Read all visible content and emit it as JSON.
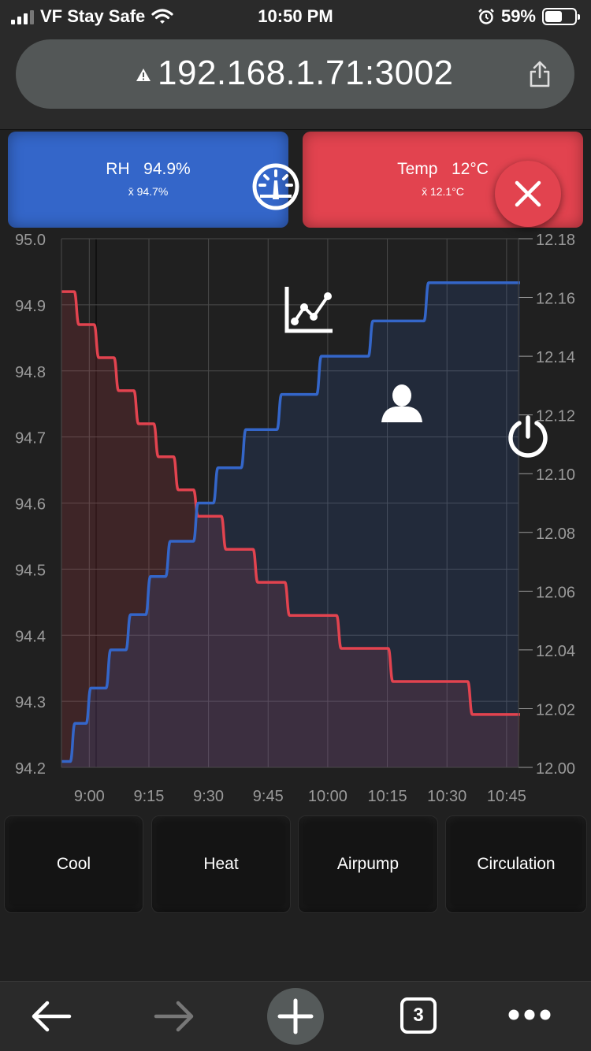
{
  "status_bar": {
    "carrier": "VF Stay Safe",
    "time": "10:50 PM",
    "battery": "59%",
    "battery_level": 0.59,
    "icons": [
      "signal-icon",
      "wifi-icon",
      "alarm-icon",
      "battery-icon"
    ]
  },
  "browser": {
    "url": "192.168.1.71:3002",
    "tab_count": "3",
    "icons": [
      "warning-icon",
      "share-icon",
      "back-icon",
      "forward-icon",
      "new-tab-icon",
      "tabs-icon",
      "more-icon"
    ]
  },
  "cards": {
    "rh": {
      "label": "RH",
      "value": "94.9%",
      "mean": "x̄ 94.7%"
    },
    "temp": {
      "label": "Temp",
      "value": "12°C",
      "mean": "x̄ 12.1°C"
    }
  },
  "colors": {
    "rh": "#3466c9",
    "temp": "#e2434f",
    "background": "#202020"
  },
  "chart_data": {
    "type": "line",
    "x": [
      "8:53",
      "8:55",
      "9:00",
      "9:05",
      "9:10",
      "9:15",
      "9:20",
      "9:25",
      "9:30",
      "9:35",
      "9:40",
      "9:45",
      "9:55",
      "10:05",
      "10:15",
      "10:25",
      "10:35",
      "10:45"
    ],
    "x_tick_labels": [
      "9:00",
      "9:15",
      "9:30",
      "9:45",
      "10:00",
      "10:15",
      "10:30",
      "10:45"
    ],
    "y_left": {
      "range": [
        94.2,
        95.0
      ],
      "ticks": [
        "95.0",
        "94.9",
        "94.8",
        "94.7",
        "94.6",
        "94.5",
        "94.4",
        "94.3",
        "94.2"
      ]
    },
    "y_right": {
      "range": [
        12.0,
        12.18
      ],
      "ticks": [
        "12.18",
        "12.16",
        "12.14",
        "12.12",
        "12.10",
        "12.08",
        "12.06",
        "12.04",
        "12.02",
        "12.00"
      ]
    },
    "series": [
      {
        "axis": "left",
        "color": "#e2434f",
        "steps": [
          [
            "8:53",
            94.92
          ],
          [
            "8:57",
            94.87
          ],
          [
            "9:02",
            94.82
          ],
          [
            "9:07",
            94.77
          ],
          [
            "9:12",
            94.72
          ],
          [
            "9:17",
            94.67
          ],
          [
            "9:22",
            94.62
          ],
          [
            "9:27",
            94.58
          ],
          [
            "9:34",
            94.53
          ],
          [
            "9:42",
            94.48
          ],
          [
            "9:50",
            94.43
          ],
          [
            "10:03",
            94.38
          ],
          [
            "10:16",
            94.33
          ],
          [
            "10:36",
            94.28
          ],
          [
            "10:48",
            94.28
          ]
        ]
      },
      {
        "axis": "right",
        "color": "#3466c9",
        "steps": [
          [
            "8:53",
            12.002
          ],
          [
            "8:56",
            12.015
          ],
          [
            "9:00",
            12.027
          ],
          [
            "9:05",
            12.04
          ],
          [
            "9:10",
            12.052
          ],
          [
            "9:15",
            12.065
          ],
          [
            "9:20",
            12.077
          ],
          [
            "9:27",
            12.09
          ],
          [
            "9:32",
            12.102
          ],
          [
            "9:39",
            12.115
          ],
          [
            "9:48",
            12.127
          ],
          [
            "9:58",
            12.14
          ],
          [
            "10:11",
            12.152
          ],
          [
            "10:25",
            12.165
          ],
          [
            "10:48",
            12.165
          ]
        ]
      }
    ],
    "grid": true,
    "legend": "none"
  },
  "controls": [
    "Cool",
    "Heat",
    "Airpump",
    "Circulation"
  ],
  "overlay_icons": [
    "gauge-icon",
    "close-icon",
    "chart-icon",
    "user-icon",
    "power-icon"
  ]
}
